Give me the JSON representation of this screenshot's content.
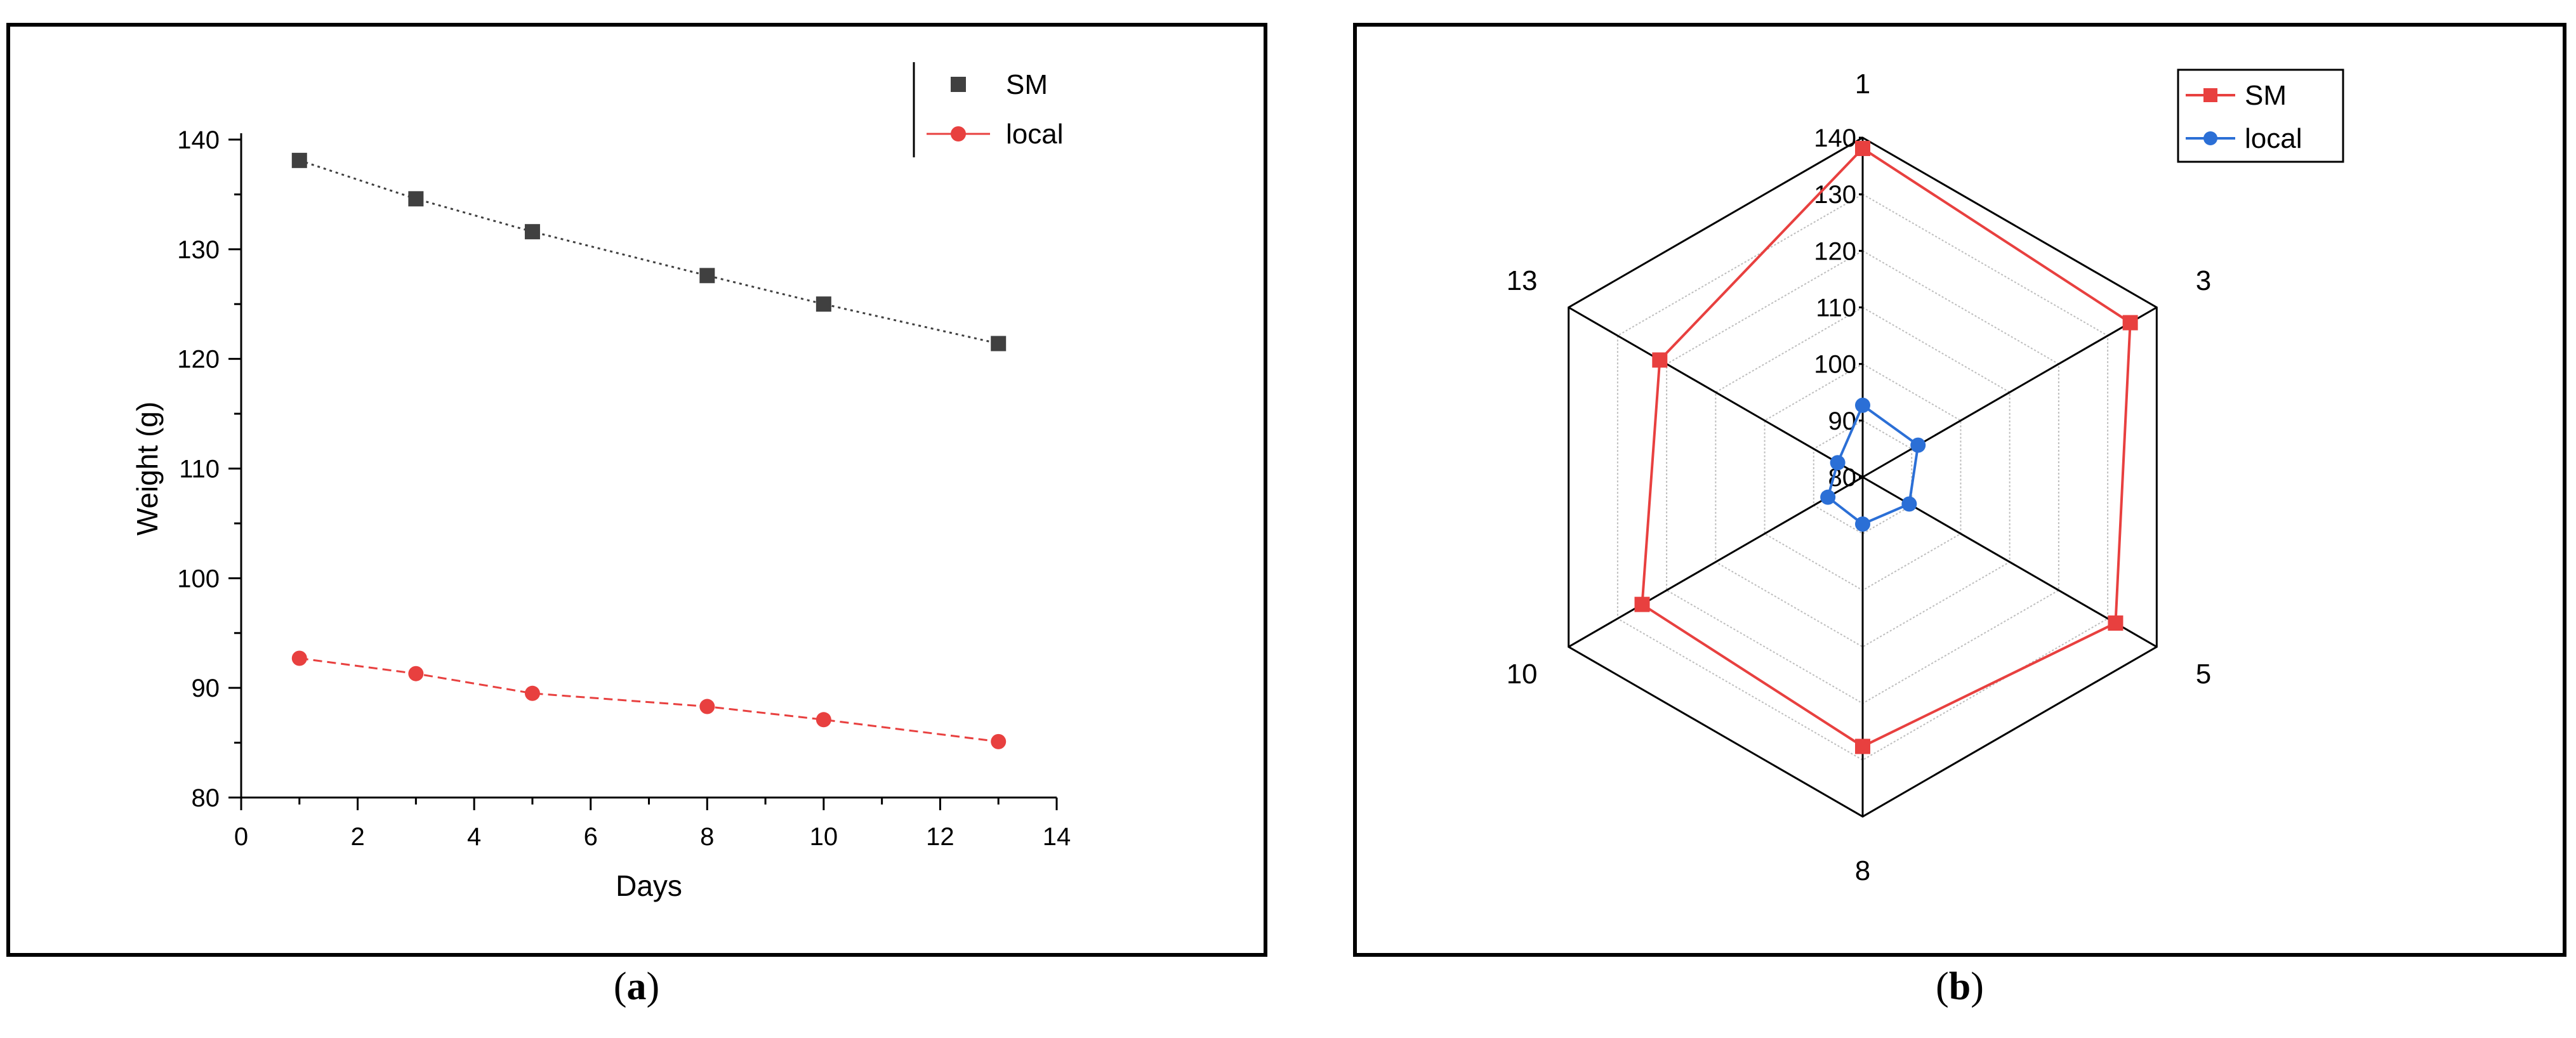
{
  "chart_data": [
    {
      "type": "line",
      "panel_label": "a",
      "xlabel": "Days",
      "ylabel": "Weight (g)",
      "xlim": [
        0,
        14
      ],
      "ylim": [
        80,
        140
      ],
      "xticks": [
        0,
        2,
        4,
        6,
        8,
        10,
        12,
        14
      ],
      "yticks": [
        80,
        90,
        100,
        110,
        120,
        130,
        140
      ],
      "legend_position": "top-right",
      "grid": false,
      "series": [
        {
          "name": "SM",
          "color": "#404040",
          "marker": "square",
          "line": "dotted",
          "x": [
            1,
            3,
            5,
            8,
            10,
            13
          ],
          "y": [
            138.1,
            134.6,
            131.6,
            127.6,
            125.0,
            121.4
          ]
        },
        {
          "name": "local",
          "color": "#e8403f",
          "marker": "circle",
          "line": "dashed",
          "x": [
            1,
            3,
            5,
            8,
            10,
            13
          ],
          "y": [
            92.7,
            91.3,
            89.5,
            88.3,
            87.1,
            85.1
          ]
        }
      ]
    },
    {
      "type": "radar",
      "panel_label": "b",
      "categories": [
        "1",
        "3",
        "5",
        "8",
        "10",
        "13"
      ],
      "rlim": [
        80,
        140
      ],
      "rticks": [
        80,
        90,
        100,
        110,
        120,
        130,
        140
      ],
      "legend_position": "top-right",
      "grid": true,
      "series": [
        {
          "name": "SM",
          "color": "#e8403f",
          "marker": "square",
          "values": [
            138.1,
            134.6,
            131.6,
            127.6,
            125.0,
            121.4
          ]
        },
        {
          "name": "local",
          "color": "#2b6fd6",
          "marker": "circle",
          "values": [
            92.7,
            91.3,
            89.5,
            88.3,
            87.1,
            85.1
          ]
        }
      ]
    }
  ]
}
